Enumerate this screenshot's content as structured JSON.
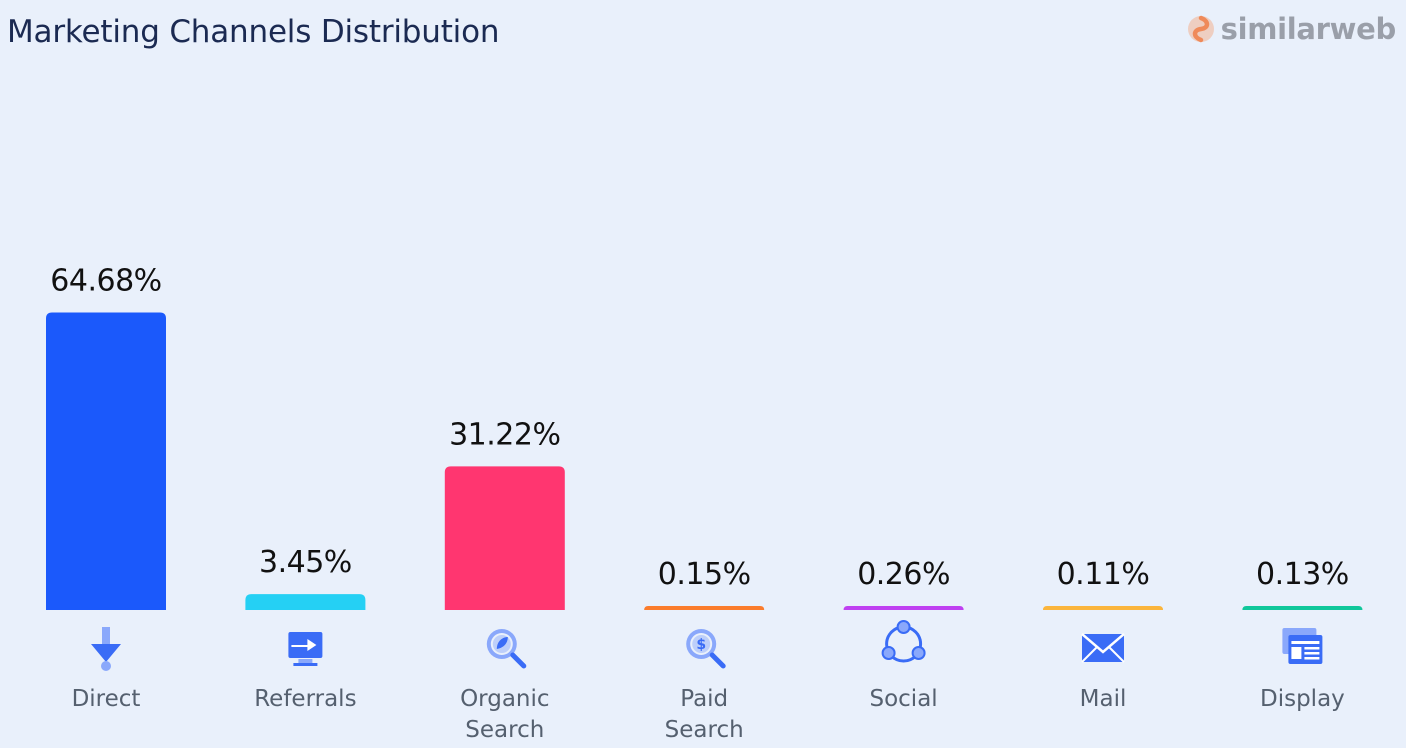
{
  "header": {
    "title": "Marketing Channels Distribution",
    "brand": "similarweb",
    "brand_icon": "similarweb-logo-icon"
  },
  "chart_data": {
    "type": "bar",
    "title": "Marketing Channels Distribution",
    "xlabel": "",
    "ylabel": "",
    "ylim": [
      0,
      100
    ],
    "grid": false,
    "legend": "none",
    "categories": [
      "Direct",
      "Referrals",
      "Organic Search",
      "Paid Search",
      "Social",
      "Mail",
      "Display"
    ],
    "category_lines": [
      [
        "Direct"
      ],
      [
        "Referrals"
      ],
      [
        "Organic",
        "Search"
      ],
      [
        "Paid",
        "Search"
      ],
      [
        "Social"
      ],
      [
        "Mail"
      ],
      [
        "Display"
      ]
    ],
    "values": [
      64.68,
      3.45,
      31.22,
      0.15,
      0.26,
      0.11,
      0.13
    ],
    "value_labels": [
      "64.68%",
      "3.45%",
      "31.22%",
      "0.15%",
      "0.26%",
      "0.11%",
      "0.13%"
    ],
    "colors": [
      "#1b59fb",
      "#25d0f4",
      "#ff3670",
      "#fb7c2c",
      "#bf40f1",
      "#fbb53c",
      "#10c79b"
    ],
    "icons": [
      "direct-arrow-icon",
      "referrals-monitor-icon",
      "organic-search-icon",
      "paid-search-icon",
      "social-share-icon",
      "mail-envelope-icon",
      "display-window-icon"
    ]
  }
}
